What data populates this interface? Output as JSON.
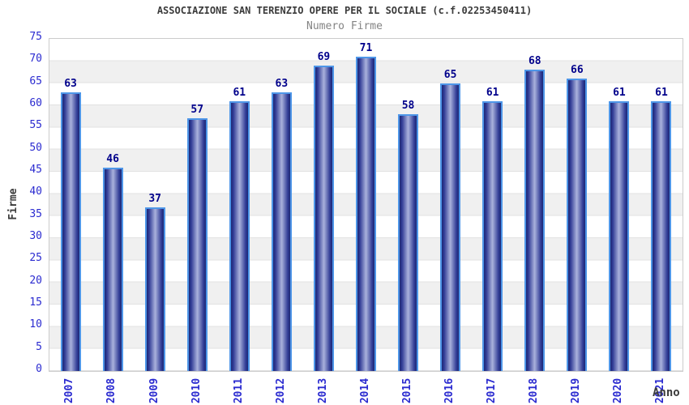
{
  "title": "ASSOCIAZIONE SAN TERENZIO OPERE PER IL SOCIALE (c.f.02253450411)",
  "subtitle": "Numero Firme",
  "chart_data": {
    "type": "bar",
    "categories": [
      "2007",
      "2008",
      "2009",
      "2010",
      "2011",
      "2012",
      "2013",
      "2014",
      "2015",
      "2016",
      "2017",
      "2018",
      "2019",
      "2020",
      "2021"
    ],
    "values": [
      63,
      46,
      37,
      57,
      61,
      63,
      69,
      71,
      58,
      65,
      61,
      68,
      66,
      61,
      61
    ],
    "title": "ASSOCIAZIONE SAN TERENZIO OPERE PER IL SOCIALE (c.f.02253450411)",
    "subtitle": "Numero Firme",
    "xlabel": "Anno",
    "ylabel": "Firme",
    "ylim": [
      0,
      75
    ],
    "ytick_step": 5,
    "grid": "horizontal-bands-alternating",
    "legend": false,
    "bar_labels_shown": true,
    "x_tick_rotation_degrees": 90
  },
  "colors": {
    "title": "#3b3b3b",
    "subtitle": "#848484",
    "tick_label": "#2b2bd0",
    "value_label": "#00008b",
    "axis_title": "#3b3b3b",
    "bar_border": "#4e96e8",
    "bar_dark": "#1d2874",
    "bar_light": "#aab2dc",
    "band_gray": "#f0f0f0",
    "grid_line": "#e2e2e2",
    "plot_border": "#cccccc"
  }
}
